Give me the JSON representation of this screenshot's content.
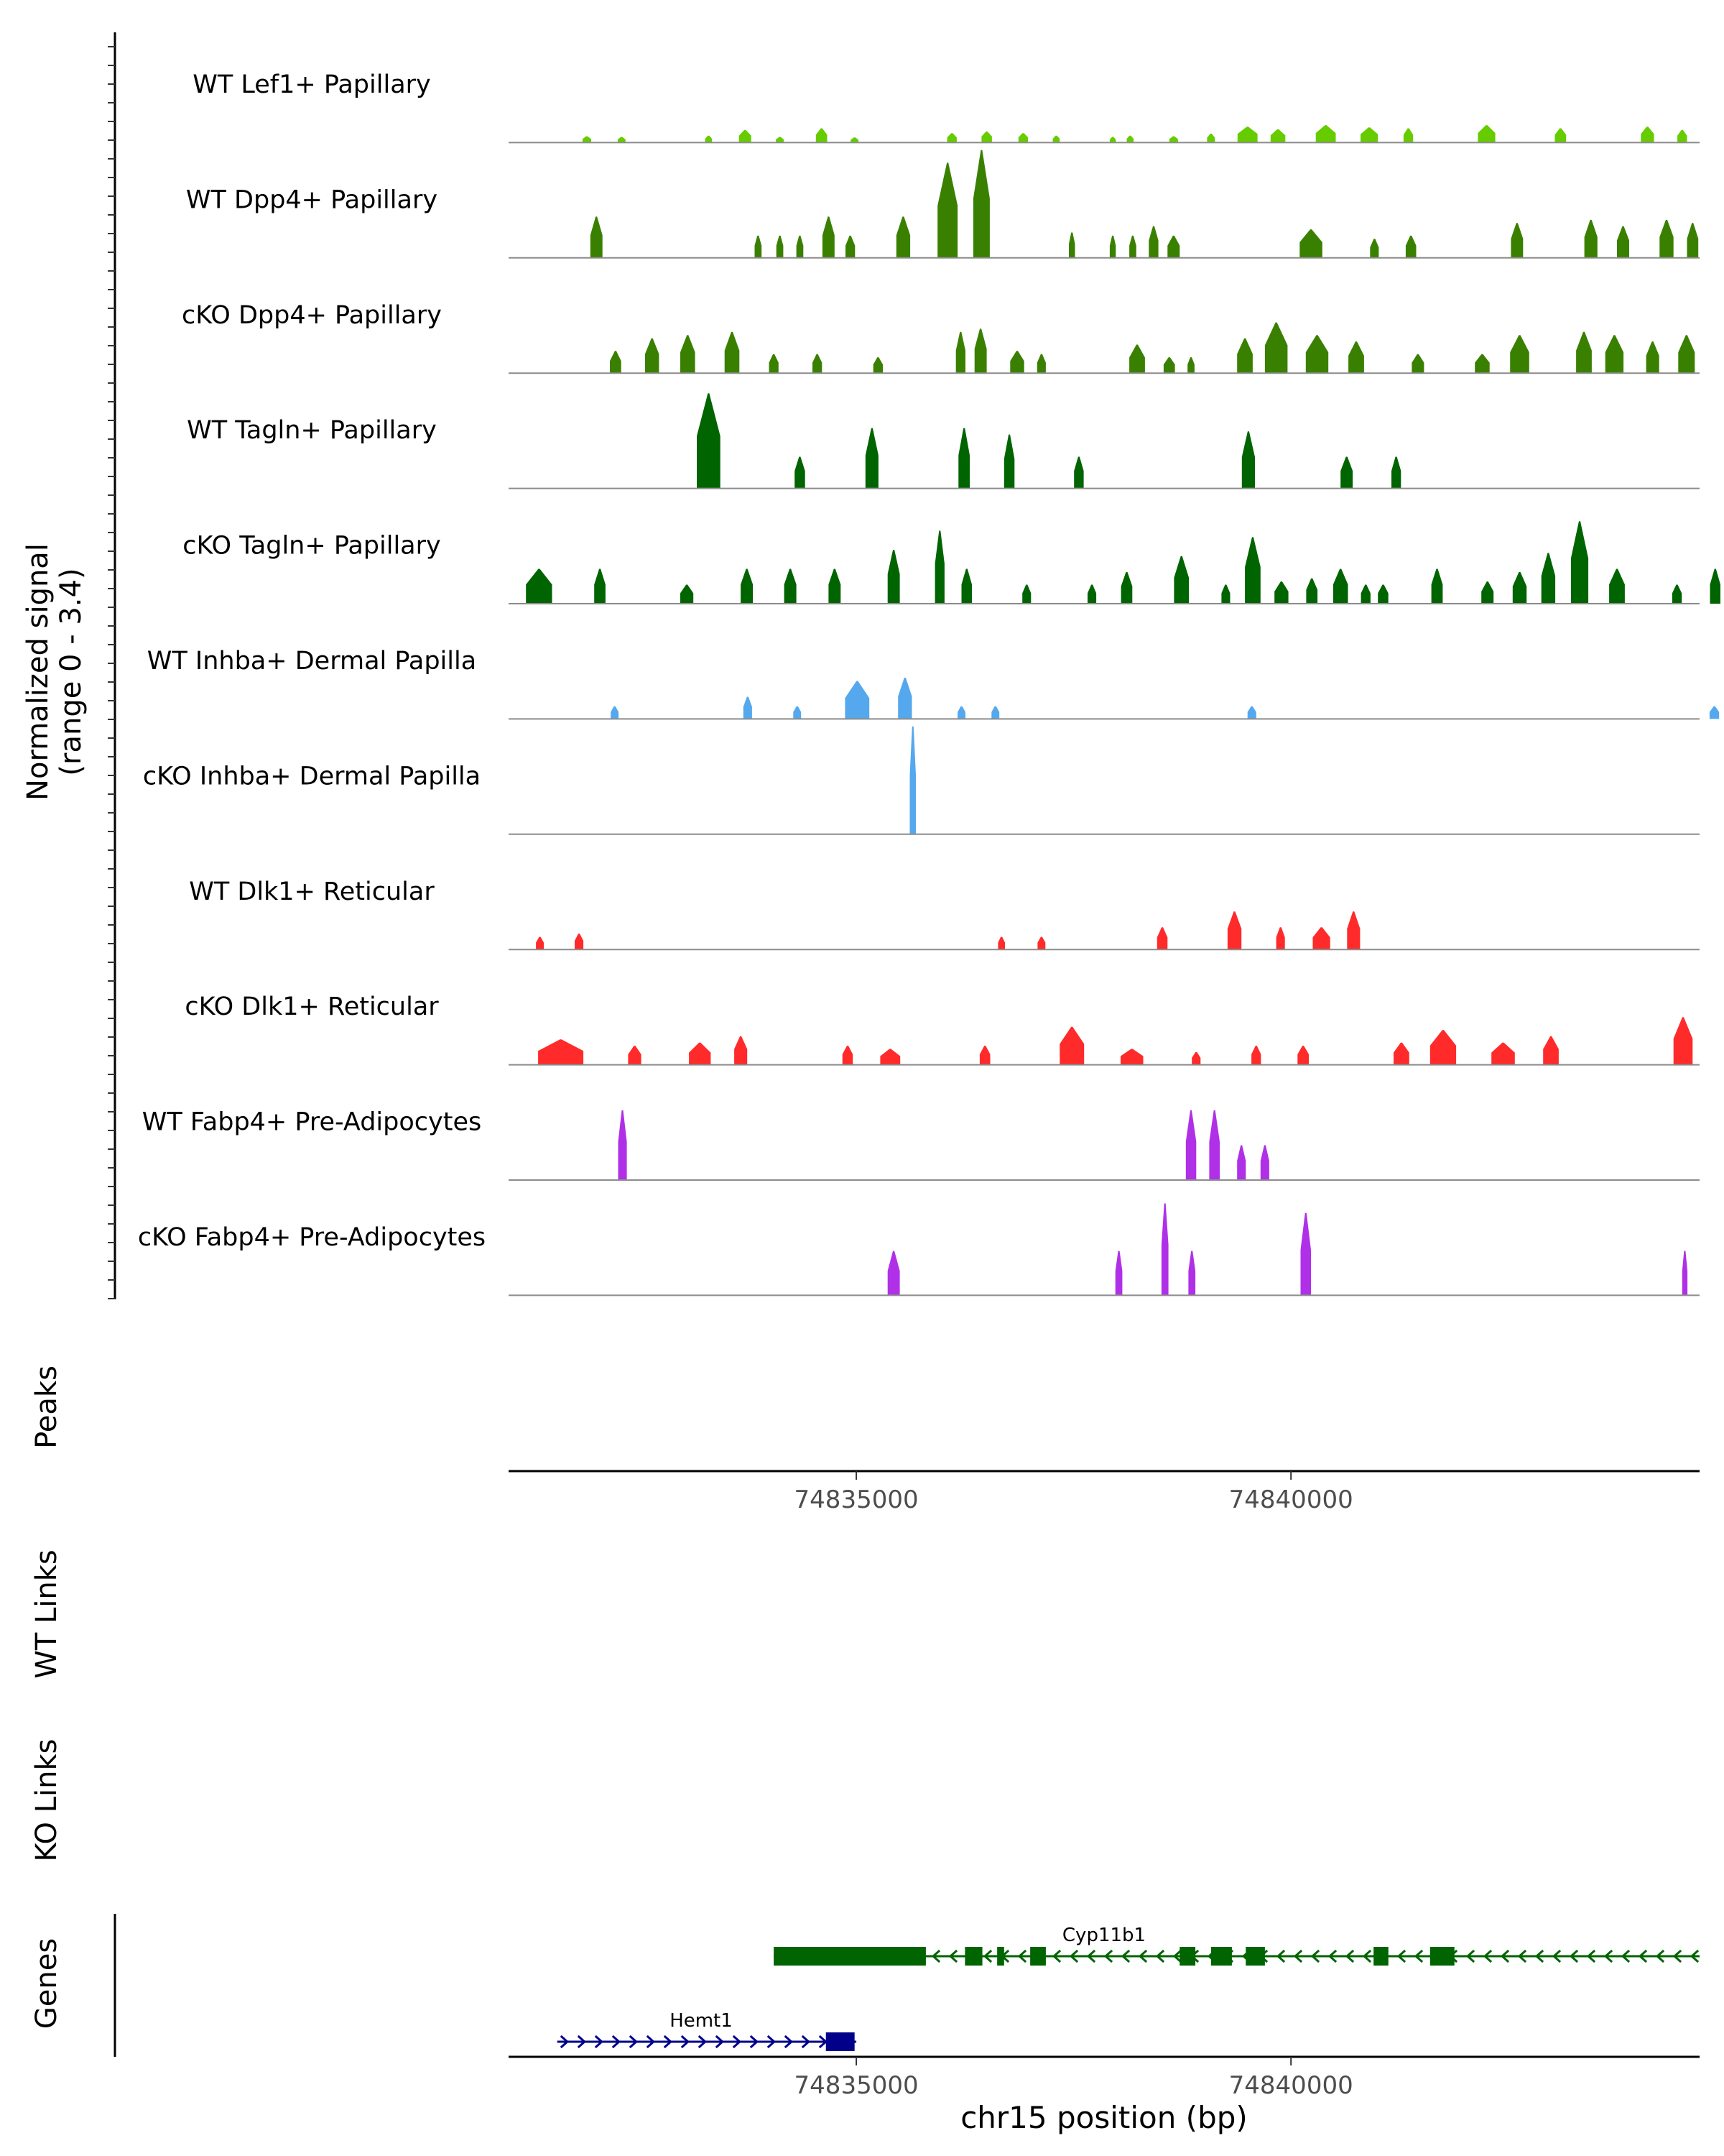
{
  "chart_data": {
    "type": "area",
    "title": "",
    "y_axis_label_line1": "Normalized signal",
    "y_axis_label_line2": "(range 0 - 3.4)",
    "signal_range": [
      0,
      3.4
    ],
    "x_range": [
      74831000,
      74844700
    ],
    "x_ticks": [
      74835000,
      74840000
    ],
    "x_tick_labels": [
      "74835000",
      "74840000"
    ],
    "xlabel": "chr15 position (bp)",
    "colors": {
      "lef1": "#66CC00",
      "dpp4": "#3A8000",
      "tagln": "#006400",
      "inhba": "#55A8EE",
      "dlk1": "#FF2A2A",
      "fabp4": "#B030E8",
      "gene_cyp": "#006400",
      "gene_hemt": "#00008B",
      "baseline": "#8c8c8c"
    },
    "tracks": [
      {
        "label": "WT Lef1+ Papillary",
        "color_key": "lef1",
        "peaks": [
          [
            74831900,
            100,
            0.2
          ],
          [
            74832300,
            90,
            0.18
          ],
          [
            74833300,
            80,
            0.22
          ],
          [
            74833720,
            140,
            0.4
          ],
          [
            74834120,
            90,
            0.18
          ],
          [
            74834600,
            130,
            0.45
          ],
          [
            74834980,
            90,
            0.16
          ],
          [
            74836100,
            110,
            0.3
          ],
          [
            74836500,
            120,
            0.35
          ],
          [
            74836920,
            110,
            0.3
          ],
          [
            74837300,
            80,
            0.22
          ],
          [
            74837950,
            70,
            0.18
          ],
          [
            74838150,
            80,
            0.22
          ],
          [
            74838650,
            100,
            0.2
          ],
          [
            74839080,
            90,
            0.28
          ],
          [
            74839500,
            230,
            0.5
          ],
          [
            74839850,
            170,
            0.42
          ],
          [
            74840400,
            230,
            0.55
          ],
          [
            74840900,
            200,
            0.48
          ],
          [
            74841350,
            110,
            0.45
          ],
          [
            74842250,
            200,
            0.55
          ],
          [
            74843100,
            130,
            0.45
          ],
          [
            74844100,
            150,
            0.5
          ],
          [
            74844500,
            110,
            0.4
          ]
        ]
      },
      {
        "label": "WT Dpp4+ Papillary",
        "color_key": "dpp4",
        "peaks": [
          [
            74832010,
            140,
            1.3
          ],
          [
            74833870,
            80,
            0.7
          ],
          [
            74834120,
            80,
            0.7
          ],
          [
            74834350,
            80,
            0.7
          ],
          [
            74834680,
            140,
            1.3
          ],
          [
            74834930,
            110,
            0.7
          ],
          [
            74835540,
            160,
            1.3
          ],
          [
            74836050,
            230,
            3.0
          ],
          [
            74836440,
            190,
            3.4
          ],
          [
            74837480,
            70,
            0.8
          ],
          [
            74837950,
            70,
            0.7
          ],
          [
            74838180,
            80,
            0.7
          ],
          [
            74838420,
            110,
            1.0
          ],
          [
            74838650,
            140,
            0.7
          ],
          [
            74840230,
            260,
            0.9
          ],
          [
            74840960,
            100,
            0.6
          ],
          [
            74841380,
            120,
            0.7
          ],
          [
            74842600,
            140,
            1.1
          ],
          [
            74843450,
            150,
            1.2
          ],
          [
            74843820,
            140,
            1.0
          ],
          [
            74844320,
            160,
            1.2
          ],
          [
            74844620,
            130,
            1.1
          ]
        ]
      },
      {
        "label": "cKO Dpp4+ Papillary",
        "color_key": "dpp4",
        "peaks": [
          [
            74832230,
            130,
            0.7
          ],
          [
            74832650,
            160,
            1.1
          ],
          [
            74833060,
            170,
            1.2
          ],
          [
            74833570,
            170,
            1.3
          ],
          [
            74834050,
            110,
            0.6
          ],
          [
            74834550,
            110,
            0.6
          ],
          [
            74835250,
            110,
            0.5
          ],
          [
            74836200,
            110,
            1.3
          ],
          [
            74836430,
            140,
            1.4
          ],
          [
            74836850,
            160,
            0.7
          ],
          [
            74837130,
            100,
            0.6
          ],
          [
            74838230,
            180,
            0.9
          ],
          [
            74838600,
            130,
            0.5
          ],
          [
            74838850,
            80,
            0.5
          ],
          [
            74839470,
            180,
            1.1
          ],
          [
            74839830,
            260,
            1.6
          ],
          [
            74840300,
            260,
            1.2
          ],
          [
            74840750,
            180,
            1.0
          ],
          [
            74841460,
            140,
            0.6
          ],
          [
            74842200,
            170,
            0.6
          ],
          [
            74842630,
            220,
            1.2
          ],
          [
            74843370,
            180,
            1.3
          ],
          [
            74843720,
            210,
            1.2
          ],
          [
            74844160,
            150,
            1.0
          ],
          [
            74844550,
            190,
            1.2
          ]
        ]
      },
      {
        "label": "WT Tagln+ Papillary",
        "color_key": "tagln",
        "peaks": [
          [
            74833300,
            270,
            3.0
          ],
          [
            74834350,
            120,
            1.0
          ],
          [
            74835180,
            150,
            1.9
          ],
          [
            74836240,
            130,
            1.9
          ],
          [
            74836760,
            120,
            1.7
          ],
          [
            74837560,
            110,
            1.0
          ],
          [
            74839510,
            150,
            1.8
          ],
          [
            74840640,
            140,
            1.0
          ],
          [
            74841210,
            110,
            1.0
          ]
        ]
      },
      {
        "label": "cKO Tagln+ Papillary",
        "color_key": "tagln",
        "peaks": [
          [
            74831350,
            300,
            1.1
          ],
          [
            74832050,
            130,
            1.1
          ],
          [
            74833050,
            150,
            0.6
          ],
          [
            74833740,
            140,
            1.1
          ],
          [
            74834240,
            140,
            1.1
          ],
          [
            74834750,
            140,
            1.1
          ],
          [
            74835430,
            140,
            1.7
          ],
          [
            74835960,
            110,
            2.3
          ],
          [
            74836270,
            120,
            1.1
          ],
          [
            74836960,
            100,
            0.6
          ],
          [
            74837710,
            100,
            0.6
          ],
          [
            74838110,
            130,
            1.0
          ],
          [
            74838740,
            170,
            1.5
          ],
          [
            74839250,
            100,
            0.6
          ],
          [
            74839560,
            180,
            2.1
          ],
          [
            74839890,
            160,
            0.7
          ],
          [
            74840240,
            130,
            0.8
          ],
          [
            74840570,
            170,
            1.1
          ],
          [
            74840860,
            110,
            0.6
          ],
          [
            74841060,
            120,
            0.6
          ],
          [
            74841680,
            130,
            1.1
          ],
          [
            74842260,
            140,
            0.7
          ],
          [
            74842630,
            160,
            1.0
          ],
          [
            74842960,
            160,
            1.6
          ],
          [
            74843320,
            200,
            2.6
          ],
          [
            74843750,
            180,
            1.1
          ],
          [
            74844440,
            110,
            0.6
          ],
          [
            74844880,
            120,
            1.1
          ]
        ]
      },
      {
        "label": "WT Inhba+ Dermal Papilla",
        "color_key": "inhba",
        "peaks": [
          [
            74832220,
            90,
            0.4
          ],
          [
            74833750,
            100,
            0.7
          ],
          [
            74834320,
            90,
            0.4
          ],
          [
            74835010,
            280,
            1.2
          ],
          [
            74835560,
            160,
            1.3
          ],
          [
            74836210,
            90,
            0.4
          ],
          [
            74836600,
            90,
            0.4
          ],
          [
            74839550,
            100,
            0.4
          ],
          [
            74844870,
            110,
            0.4
          ]
        ]
      },
      {
        "label": "cKO Inhba+ Dermal Papilla",
        "color_key": "inhba",
        "peaks": [
          [
            74835650,
            70,
            3.4
          ]
        ]
      },
      {
        "label": "WT Dlk1+ Reticular",
        "color_key": "dlk1",
        "peaks": [
          [
            74831360,
            90,
            0.4
          ],
          [
            74831810,
            100,
            0.5
          ],
          [
            74836670,
            80,
            0.4
          ],
          [
            74837130,
            90,
            0.4
          ],
          [
            74838520,
            120,
            0.7
          ],
          [
            74839350,
            160,
            1.2
          ],
          [
            74839880,
            100,
            0.7
          ],
          [
            74840350,
            200,
            0.7
          ],
          [
            74840720,
            150,
            1.2
          ]
        ]
      },
      {
        "label": "cKO Dlk1+ Reticular",
        "color_key": "dlk1",
        "peaks": [
          [
            74831600,
            520,
            0.8
          ],
          [
            74832450,
            150,
            0.6
          ],
          [
            74833200,
            250,
            0.7
          ],
          [
            74833670,
            150,
            0.9
          ],
          [
            74834900,
            120,
            0.6
          ],
          [
            74835390,
            230,
            0.5
          ],
          [
            74836480,
            120,
            0.6
          ],
          [
            74837480,
            280,
            1.2
          ],
          [
            74838170,
            260,
            0.5
          ],
          [
            74838910,
            100,
            0.4
          ],
          [
            74839600,
            110,
            0.6
          ],
          [
            74840140,
            130,
            0.6
          ],
          [
            74841270,
            180,
            0.7
          ],
          [
            74841750,
            300,
            1.1
          ],
          [
            74842440,
            270,
            0.7
          ],
          [
            74842990,
            180,
            0.9
          ],
          [
            74844510,
            220,
            1.5
          ]
        ]
      },
      {
        "label": "WT Fabp4+ Pre-Adipocytes",
        "color_key": "fabp4",
        "peaks": [
          [
            74832310,
            100,
            2.2
          ],
          [
            74838850,
            120,
            2.2
          ],
          [
            74839120,
            120,
            2.2
          ],
          [
            74839430,
            100,
            1.1
          ],
          [
            74839700,
            100,
            1.1
          ]
        ]
      },
      {
        "label": "cKO Fabp4+ Pre-Adipocytes",
        "color_key": "fabp4",
        "peaks": [
          [
            74835430,
            140,
            1.4
          ],
          [
            74838020,
            80,
            1.4
          ],
          [
            74838550,
            80,
            2.9
          ],
          [
            74838860,
            80,
            1.4
          ],
          [
            74840170,
            120,
            2.6
          ],
          [
            74844530,
            60,
            1.4
          ]
        ]
      }
    ],
    "side_labels": {
      "peaks": "Peaks",
      "wt_links": "WT Links",
      "ko_links": "KO Links",
      "genes": "Genes"
    },
    "genes": [
      {
        "name": "Cyp11b1",
        "strand": "-",
        "color_key": "gene_cyp",
        "start": 74834050,
        "end": 74844700,
        "exons": [
          [
            74834050,
            74835800
          ],
          [
            74836250,
            74836450
          ],
          [
            74836620,
            74836700
          ],
          [
            74837000,
            74837180
          ],
          [
            74838720,
            74838900
          ],
          [
            74839080,
            74839320
          ],
          [
            74839480,
            74839700
          ],
          [
            74840950,
            74841120
          ],
          [
            74841600,
            74841880
          ]
        ]
      },
      {
        "name": "Hemt1",
        "strand": "+",
        "color_key": "gene_hemt",
        "start": 74831560,
        "end": 74835000,
        "exons": [
          [
            74834650,
            74834980
          ]
        ]
      }
    ]
  }
}
